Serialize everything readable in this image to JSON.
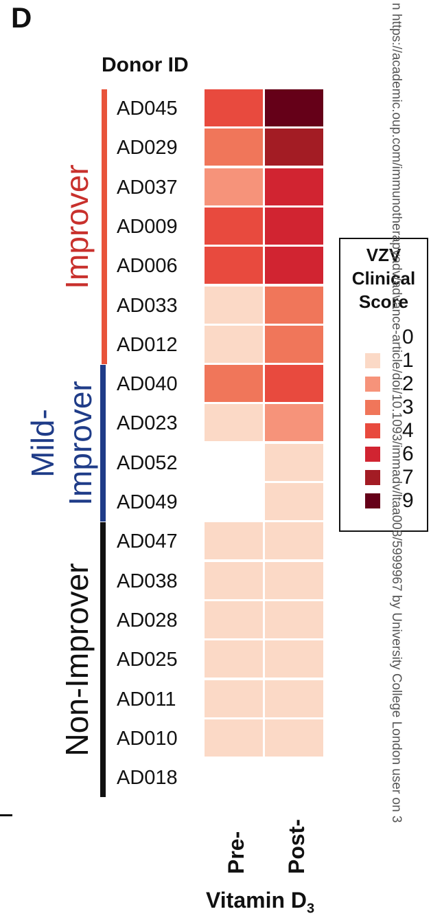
{
  "panel_label": "D",
  "watermark": "n https://academic.oup.com/immunotherapyadv/advance-article/doi/10.1093/immadv/ltaa008/5999967 by University College London user on 3",
  "chart_data": {
    "type": "heatmap",
    "row_header": "Donor ID",
    "rows": [
      "AD045",
      "AD029",
      "AD037",
      "AD009",
      "AD006",
      "AD033",
      "AD012",
      "AD040",
      "AD023",
      "AD052",
      "AD049",
      "AD047",
      "AD038",
      "AD028",
      "AD025",
      "AD011",
      "AD010",
      "AD018"
    ],
    "columns": [
      "Pre-",
      "Post-"
    ],
    "x_title": "Vitamin D",
    "x_title_subscript": "3",
    "values": [
      [
        4,
        9
      ],
      [
        3,
        7
      ],
      [
        2,
        6
      ],
      [
        4,
        6
      ],
      [
        4,
        6
      ],
      [
        1,
        3
      ],
      [
        1,
        3
      ],
      [
        3,
        4
      ],
      [
        1,
        2
      ],
      [
        null,
        1
      ],
      [
        null,
        1
      ],
      [
        1,
        1
      ],
      [
        1,
        1
      ],
      [
        1,
        1
      ],
      [
        1,
        1
      ],
      [
        1,
        1
      ],
      [
        1,
        1
      ],
      [
        null,
        null
      ]
    ],
    "groups": [
      {
        "name": "Improver",
        "start": 0,
        "end": 6,
        "color": "#e8533a"
      },
      {
        "name_line1": "Mild-",
        "name_line2": "Improver",
        "start": 7,
        "end": 10,
        "color": "#1f3c88"
      },
      {
        "name": "Non-Improver",
        "start": 11,
        "end": 17,
        "color": "#111111"
      }
    ],
    "legend": {
      "title_lines": [
        "VZV",
        "Clinical",
        "Score"
      ],
      "scale": [
        {
          "label": "0",
          "color": "#ffffff"
        },
        {
          "label": "1",
          "color": "#fbd9c6"
        },
        {
          "label": "2",
          "color": "#f6937a"
        },
        {
          "label": "3",
          "color": "#f0765a"
        },
        {
          "label": "4",
          "color": "#e84a3e"
        },
        {
          "label": "6",
          "color": "#d12431"
        },
        {
          "label": "7",
          "color": "#a31c24"
        },
        {
          "label": "9",
          "color": "#650018"
        }
      ]
    }
  }
}
